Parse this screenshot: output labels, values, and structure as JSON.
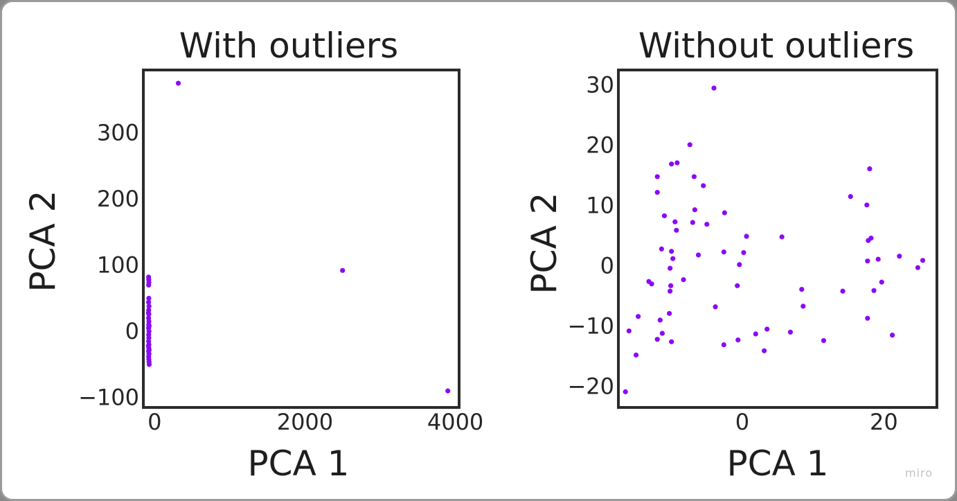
{
  "watermark": "miro",
  "colors": {
    "point": "#8a0bf5",
    "frame": "#2b2b2b",
    "text": "#1e1e1e"
  },
  "chart_data": [
    {
      "type": "scatter",
      "title": "With outliers",
      "xlabel": "PCA 1",
      "ylabel": "PCA 2",
      "xlim": [
        -150,
        4050
      ],
      "ylim": [
        -115,
        395
      ],
      "xticks": [
        0,
        2000,
        4000
      ],
      "yticks": [
        -100,
        0,
        100,
        200,
        300
      ],
      "grid": false,
      "series": [
        {
          "points": [
            [
              315,
              375
            ],
            [
              2500,
              92
            ],
            [
              3900,
              -90
            ],
            [
              -80,
              82
            ],
            [
              -78,
              78
            ],
            [
              -76,
              74
            ],
            [
              -79,
              70
            ],
            [
              -77,
              50
            ],
            [
              -80,
              44
            ],
            [
              -75,
              38
            ],
            [
              -79,
              32
            ],
            [
              -77,
              26
            ],
            [
              -80,
              20
            ],
            [
              -76,
              15
            ],
            [
              -78,
              10
            ],
            [
              -80,
              5
            ],
            [
              -75,
              0
            ],
            [
              -79,
              -5
            ],
            [
              -77,
              -10
            ],
            [
              -80,
              -15
            ],
            [
              -76,
              -20
            ],
            [
              -78,
              -25
            ],
            [
              -80,
              -30
            ],
            [
              -75,
              -34
            ],
            [
              -79,
              -38
            ],
            [
              -77,
              -42
            ],
            [
              -74,
              -46
            ],
            [
              -72,
              -50
            ],
            [
              -82,
              28
            ],
            [
              -73,
              8
            ],
            [
              -82,
              -22
            ],
            [
              -73,
              -28
            ]
          ]
        }
      ]
    },
    {
      "type": "scatter",
      "title": "Without outliers",
      "xlabel": "PCA 1",
      "ylabel": "PCA 2",
      "xlim": [
        -17.5,
        27.5
      ],
      "ylim": [
        -23.5,
        32.5
      ],
      "xticks": [
        0,
        20
      ],
      "yticks": [
        -20,
        -10,
        0,
        10,
        20,
        30
      ],
      "grid": false,
      "series": [
        {
          "points": [
            [
              -4,
              29.5
            ],
            [
              -7.4,
              20.1
            ],
            [
              -10,
              16.9
            ],
            [
              -9.2,
              17.1
            ],
            [
              -12,
              14.8
            ],
            [
              -6.8,
              14.8
            ],
            [
              -5.5,
              13.3
            ],
            [
              -12,
              12.2
            ],
            [
              -6.7,
              9.3
            ],
            [
              -2.5,
              8.8
            ],
            [
              -11,
              8.3
            ],
            [
              -9.5,
              7.3
            ],
            [
              -7,
              7.2
            ],
            [
              -5,
              6.9
            ],
            [
              -9.3,
              5.9
            ],
            [
              0.6,
              4.9
            ],
            [
              5.6,
              4.8
            ],
            [
              -11.4,
              2.8
            ],
            [
              -10,
              2.4
            ],
            [
              -2.6,
              2.3
            ],
            [
              0.2,
              2.2
            ],
            [
              -6.2,
              1.8
            ],
            [
              -9.8,
              1.2
            ],
            [
              -0.4,
              0.2
            ],
            [
              -10.2,
              -0.4
            ],
            [
              -13.2,
              -2.6
            ],
            [
              -8.3,
              -2.3
            ],
            [
              -12.8,
              -3
            ],
            [
              -10.1,
              -3.3
            ],
            [
              -0.7,
              -3.3
            ],
            [
              -10.2,
              -4.2
            ],
            [
              -3.8,
              -6.8
            ],
            [
              -10.3,
              -7.9
            ],
            [
              -14.7,
              -8.4
            ],
            [
              -11.6,
              -9
            ],
            [
              -16,
              -10.8
            ],
            [
              -11.3,
              -11.2
            ],
            [
              1.9,
              -11.3
            ],
            [
              3.5,
              -10.5
            ],
            [
              6.8,
              -11
            ],
            [
              -12,
              -12.2
            ],
            [
              -10,
              -12.6
            ],
            [
              -0.6,
              -12.3
            ],
            [
              -2.6,
              -13.1
            ],
            [
              3.1,
              -14.1
            ],
            [
              -15,
              -14.8
            ],
            [
              -16.5,
              -20.9
            ],
            [
              8.4,
              -3.9
            ],
            [
              8.6,
              -6.7
            ],
            [
              11.5,
              -12.4
            ],
            [
              14.2,
              -4.2
            ],
            [
              15.3,
              11.5
            ],
            [
              18,
              16.1
            ],
            [
              17.6,
              10.1
            ],
            [
              18.2,
              4.6
            ],
            [
              17.8,
              4.2
            ],
            [
              17.7,
              0.8
            ],
            [
              19.2,
              1.1
            ],
            [
              22.2,
              1.6
            ],
            [
              19.7,
              -2.7
            ],
            [
              18.6,
              -4.1
            ],
            [
              17.7,
              -8.7
            ],
            [
              21.2,
              -11.5
            ],
            [
              24.8,
              -0.3
            ],
            [
              25.5,
              0.9
            ]
          ]
        }
      ]
    }
  ]
}
